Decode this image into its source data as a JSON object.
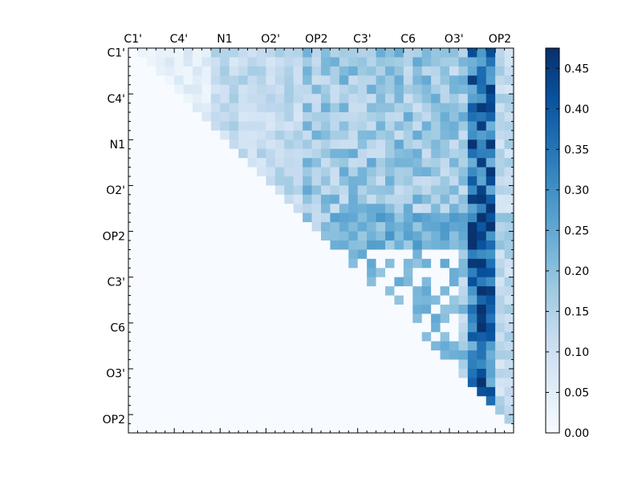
{
  "chart_data": {
    "type": "heatmap",
    "title": "",
    "xlabel": "",
    "ylabel": "",
    "x_tick_labels": [
      "C1'",
      "C4'",
      "N1",
      "O2'",
      "OP2",
      "C3'",
      "C6",
      "O3'",
      "OP2"
    ],
    "y_tick_labels": [
      "C1'",
      "C4'",
      "N1",
      "O2'",
      "OP2",
      "C3'",
      "C6",
      "O3'",
      "OP2"
    ],
    "tick_spacing_cells": 5,
    "grid_size": 42,
    "mask": "upper-triangle (cells below the diagonal are 0)",
    "colorbar": {
      "colormap": "Blues",
      "range": [
        0.0,
        0.475
      ],
      "tick_labels": [
        "0.00",
        "0.05",
        "0.10",
        "0.15",
        "0.20",
        "0.25",
        "0.30",
        "0.35",
        "0.40",
        "0.45"
      ],
      "tick_values": [
        0.0,
        0.05,
        0.1,
        0.15,
        0.2,
        0.25,
        0.3,
        0.35,
        0.4,
        0.45
      ]
    },
    "colors": {
      "low": "#f7fbff",
      "high": "#08306b",
      "frame": "#000000"
    }
  }
}
